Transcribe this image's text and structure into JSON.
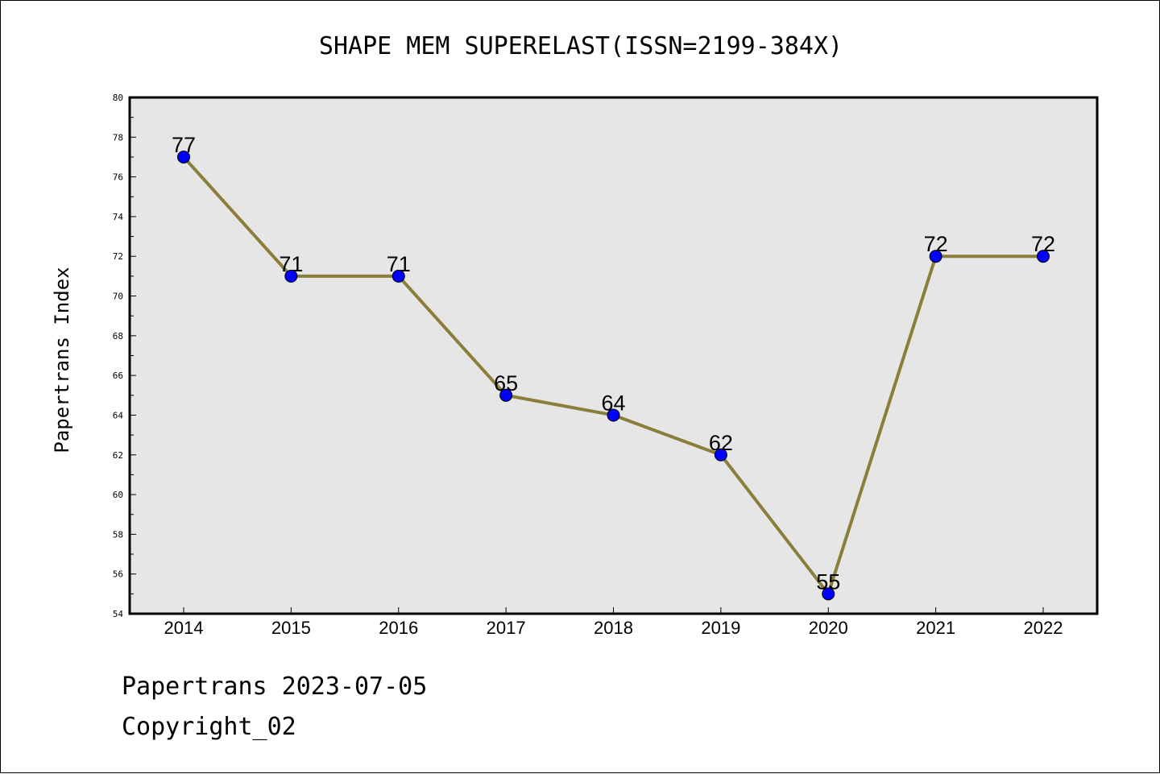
{
  "colors": {
    "plot_background": "#e6e6e6",
    "line": "#8b7d3a",
    "marker": "#0000ff",
    "text": "#000000"
  },
  "footer": {
    "source_line": "Papertrans 2023-07-05",
    "copyright_line": "Copyright_02"
  },
  "chart_data": {
    "type": "line",
    "title": "SHAPE MEM SUPERELAST(ISSN=2199-384X)",
    "xlabel": "",
    "ylabel": "Papertrans Index",
    "categories": [
      "2014",
      "2015",
      "2016",
      "2017",
      "2018",
      "2019",
      "2020",
      "2021",
      "2022"
    ],
    "series": [
      {
        "values": [
          77,
          71,
          71,
          65,
          64,
          62,
          55,
          72,
          72
        ]
      }
    ],
    "data_labels": [
      "77",
      "71",
      "71",
      "65",
      "64",
      "62",
      "55",
      "72",
      "72"
    ],
    "ylim": [
      54,
      80
    ],
    "yticks": [
      54,
      56,
      58,
      60,
      62,
      64,
      66,
      68,
      70,
      72,
      74,
      76,
      78,
      80
    ],
    "grid": false,
    "legend": "none"
  }
}
